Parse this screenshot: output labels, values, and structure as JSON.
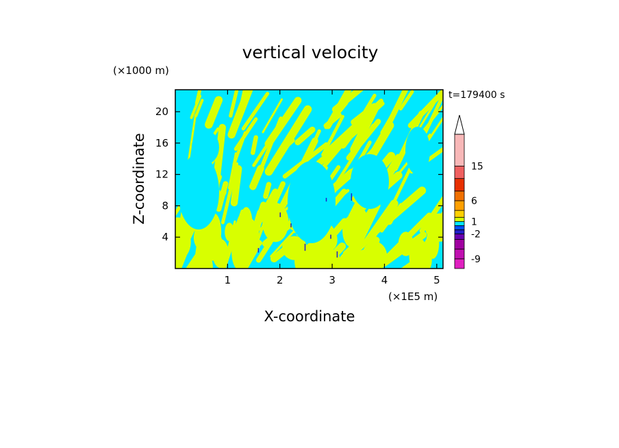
{
  "chart_data": {
    "type": "heatmap",
    "title": "vertical velocity",
    "xlabel": "X-coordinate",
    "ylabel": "Z-coordinate",
    "x_unit": "(×1E5 m)",
    "y_unit": "(×1000 m)",
    "time_label": "t=179400 s",
    "xlim": [
      0,
      5.12
    ],
    "ylim": [
      0,
      22.8
    ],
    "x_ticks": [
      1,
      2,
      3,
      4,
      5
    ],
    "y_ticks": [
      4,
      8,
      12,
      16,
      20
    ],
    "colorbar": {
      "extend": "max",
      "levels": [
        -12,
        -9,
        -6,
        -4,
        -2,
        -1,
        0,
        1,
        2,
        4,
        6,
        9,
        12,
        15,
        20
      ],
      "tick_values": [
        -9,
        -2,
        1,
        6,
        15
      ],
      "tick_labels": [
        "-9",
        "-2",
        "1",
        "6",
        "15"
      ],
      "colors": [
        "#e020c0",
        "#c010b0",
        "#a000a0",
        "#6a00b0",
        "#2020c8",
        "#0050ff",
        "#00e8ff",
        "#d8ff00",
        "#ffd000",
        "#ffa000",
        "#f07000",
        "#e83000",
        "#f06060",
        "#f8b8b8"
      ]
    },
    "field_colors": {
      "negative": "#00e8ff",
      "positive": "#d8ff00",
      "strong_negative": "#2020c8"
    }
  }
}
